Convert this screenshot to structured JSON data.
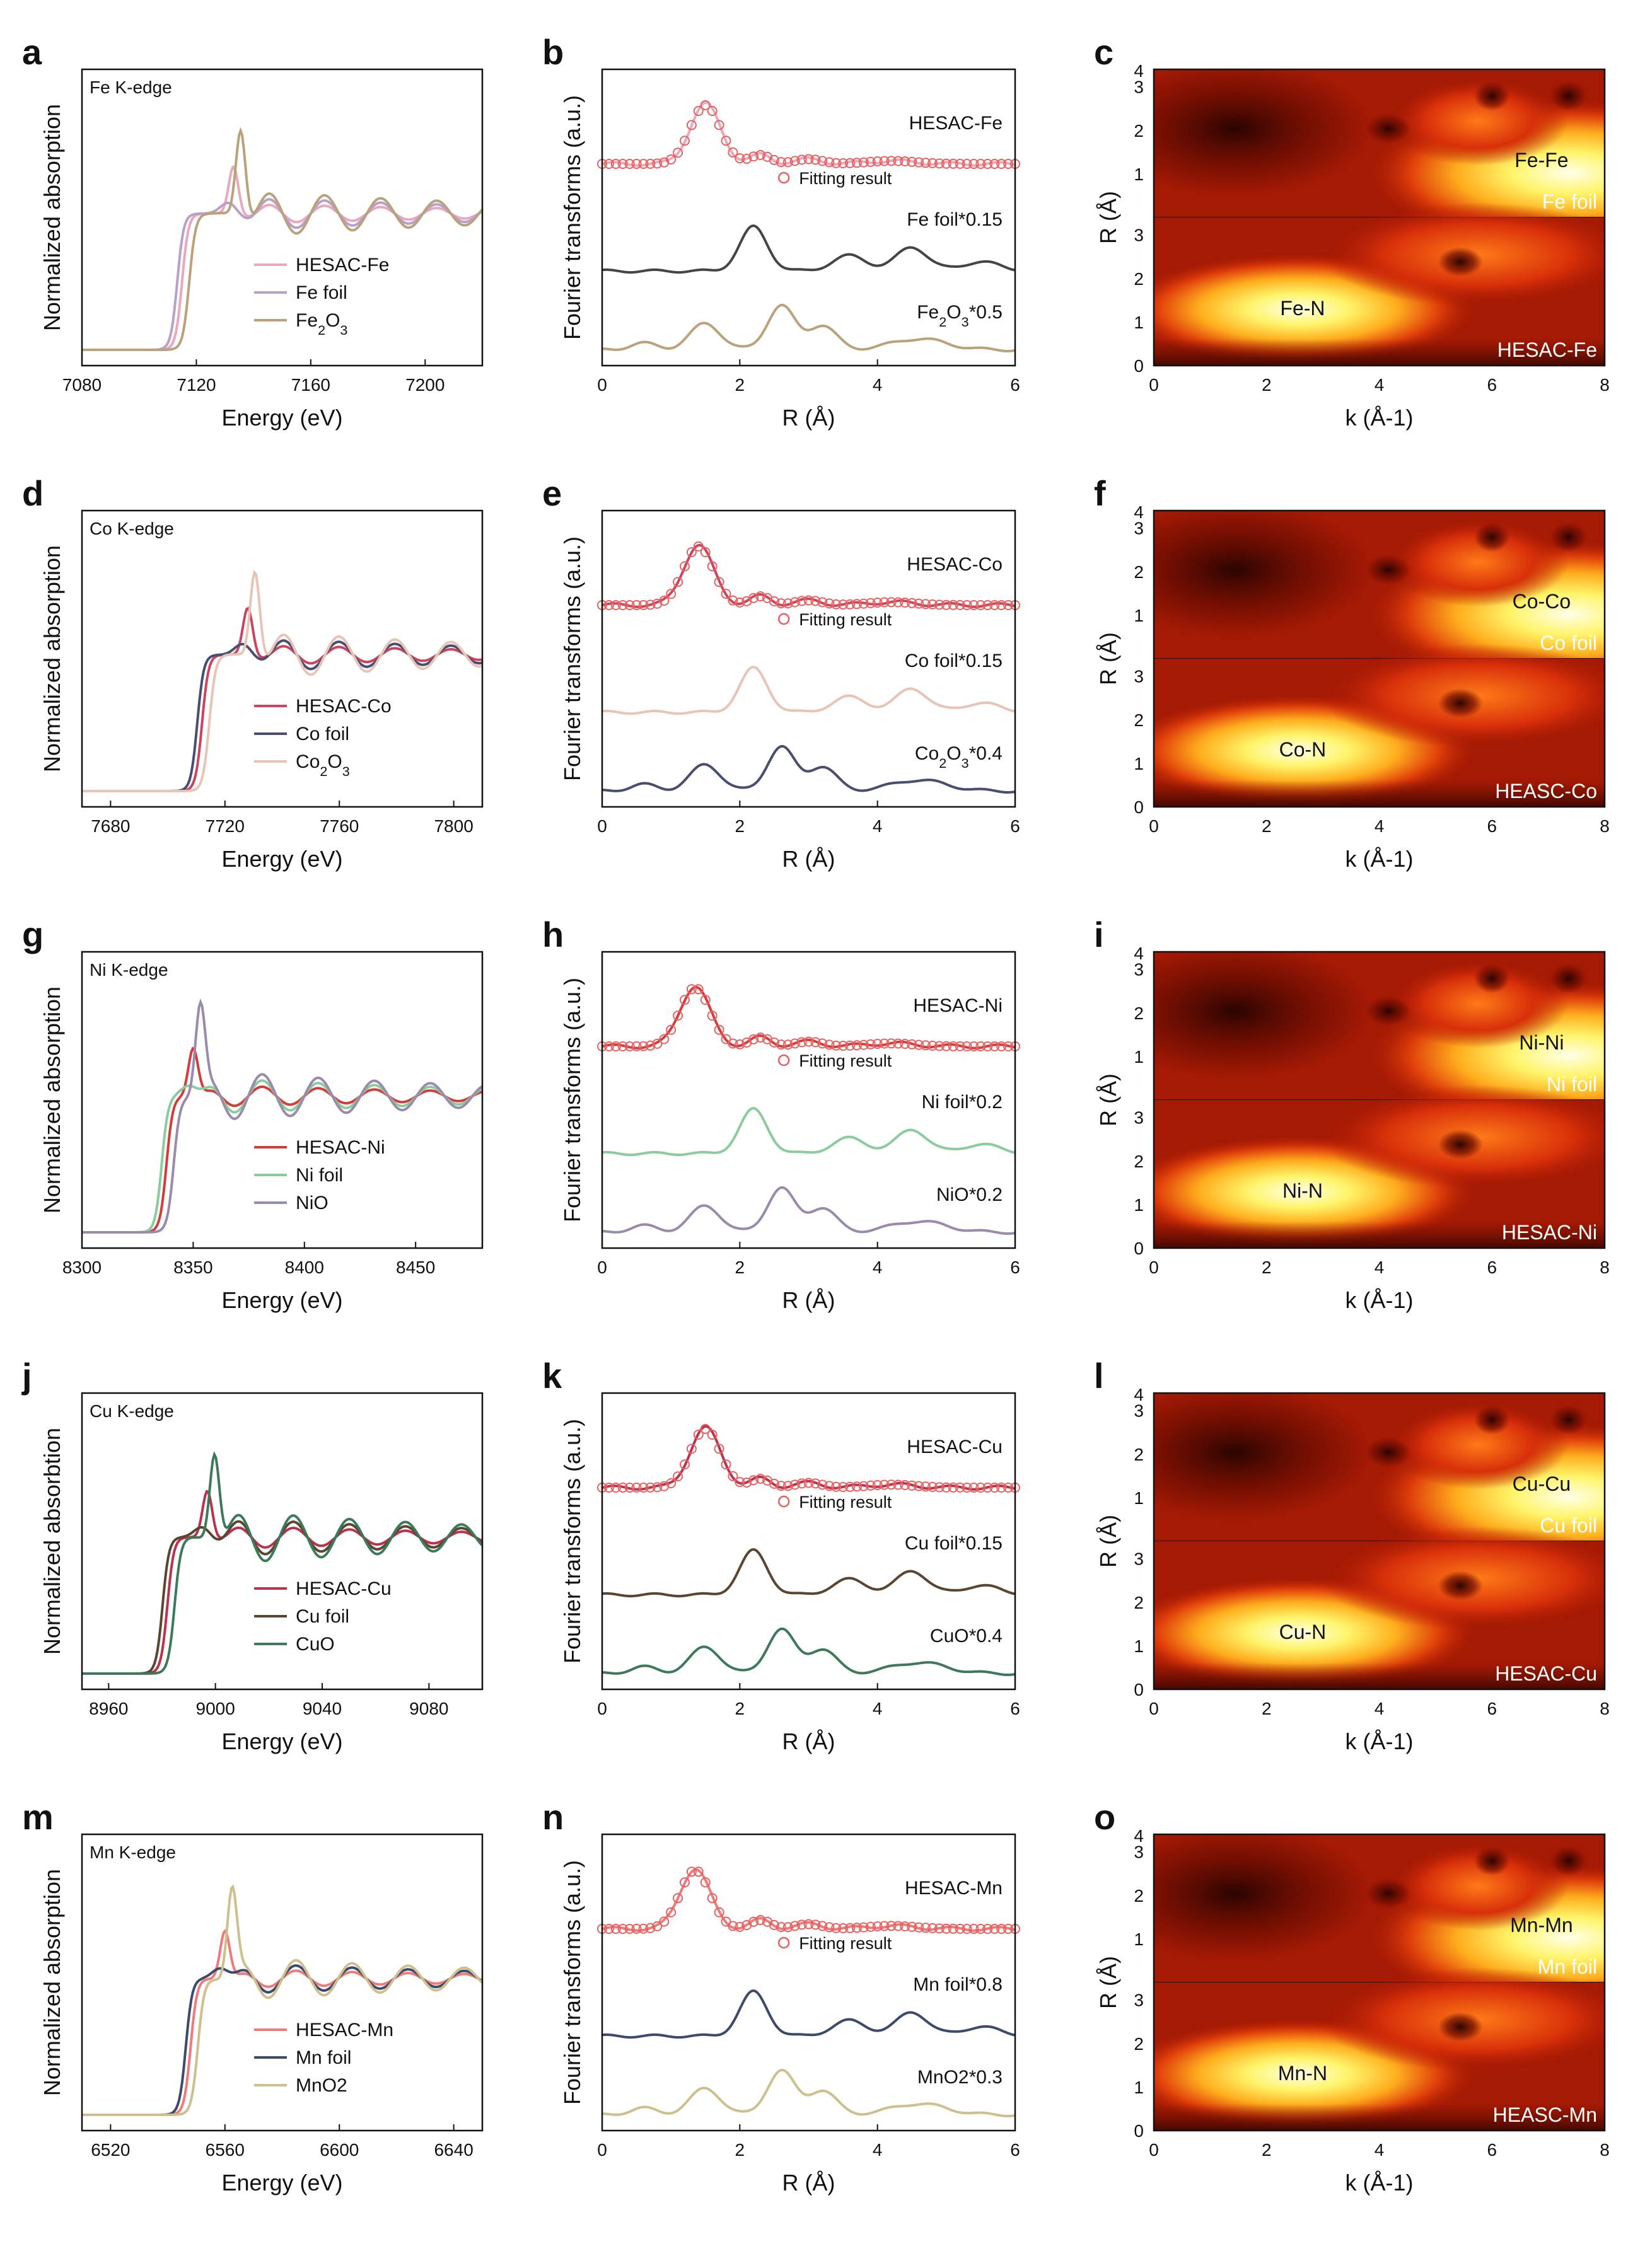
{
  "chart_data": [
    {
      "panel": "a",
      "type": "line",
      "edge_label": "Fe K-edge",
      "xlabel": "Energy (eV)",
      "ylabel": "Normalized absorption",
      "xlim": [
        7080,
        7220
      ],
      "xticks": [
        "7080",
        "7120",
        "7160",
        "7200"
      ],
      "e0": 7115,
      "peak": 7133,
      "post": 7160,
      "series": [
        {
          "name": "HESAC-Fe",
          "color": "#e8a9be"
        },
        {
          "name": "Fe foil",
          "color": "#b9a0c9"
        },
        {
          "name": "Fe2O3",
          "color": "#b9a27c"
        }
      ]
    },
    {
      "panel": "b",
      "type": "line",
      "xlabel": "R (Å)",
      "ylabel": "Fourier transforms (a.u.)",
      "xlim": [
        0,
        6
      ],
      "xticks": [
        "0",
        "2",
        "4",
        "6"
      ],
      "sample_label": "HESAC-Fe",
      "fit_label": "Fitting result",
      "ref1_label": "Fe foil*0.15",
      "ref2_label": "Fe2O3*0.5",
      "colors": {
        "sample": "#e8a9be",
        "ref1": "#454545",
        "ref2": "#b9a27c"
      },
      "sample_peak": 1.5
    },
    {
      "panel": "c",
      "type": "heatmap",
      "xlabel": "k (Å-1)",
      "ylabel": "R (Å)",
      "xlim": [
        0,
        8
      ],
      "ylim": [
        0,
        4
      ],
      "xticks": [
        "0",
        "2",
        "4",
        "6",
        "8"
      ],
      "yticks": [
        "0",
        "1",
        "2",
        "3",
        "4"
      ],
      "top_label": "Fe foil",
      "top_path": "Fe-Fe",
      "bottom_label": "HESAC-Fe",
      "bottom_path": "Fe-N"
    },
    {
      "panel": "d",
      "type": "line",
      "edge_label": "Co K-edge",
      "xlabel": "Energy (eV)",
      "ylabel": "Normalized absorption",
      "xlim": [
        7670,
        7810
      ],
      "xticks": [
        "7680",
        "7720",
        "7760",
        "7800"
      ],
      "e0": 7712,
      "peak": 7728,
      "post": 7755,
      "series": [
        {
          "name": "HESAC-Co",
          "color": "#c8465e"
        },
        {
          "name": "Co foil",
          "color": "#4a4d72"
        },
        {
          "name": "Co2O3",
          "color": "#e8c4b6"
        }
      ]
    },
    {
      "panel": "e",
      "type": "line",
      "xlabel": "R (Å)",
      "ylabel": "Fourier transforms (a.u.)",
      "xlim": [
        0,
        6
      ],
      "xticks": [
        "0",
        "2",
        "4",
        "6"
      ],
      "sample_label": "HESAC-Co",
      "fit_label": "Fitting result",
      "ref1_label": "Co foil*0.15",
      "ref2_label": "Co2O3*0.4",
      "colors": {
        "sample": "#c8465e",
        "ref1": "#e8c4b6",
        "ref2": "#4a4d72"
      },
      "sample_peak": 1.4
    },
    {
      "panel": "f",
      "type": "heatmap",
      "xlabel": "k  (Å-1)",
      "ylabel": "R (Å)",
      "xlim": [
        0,
        8
      ],
      "ylim": [
        0,
        4
      ],
      "xticks": [
        "0",
        "2",
        "4",
        "6",
        "8"
      ],
      "yticks": [
        "0",
        "1",
        "2",
        "3",
        "4"
      ],
      "top_label": "Co foil",
      "top_path": "Co-Co",
      "bottom_label": "HEASC-Co",
      "bottom_path": "Co-N"
    },
    {
      "panel": "g",
      "type": "line",
      "edge_label": "Ni K-edge",
      "xlabel": "Energy (eV)",
      "ylabel": "Normalized absorption",
      "xlim": [
        8300,
        8480
      ],
      "xticks": [
        "8300",
        "8350",
        "8400",
        "8450"
      ],
      "e0": 8338,
      "peak": 8350,
      "post": 8400,
      "series": [
        {
          "name": "HESAC-Ni",
          "color": "#d43c3c"
        },
        {
          "name": "Ni foil",
          "color": "#8ccc9c"
        },
        {
          "name": "NiO",
          "color": "#9a8aac"
        }
      ]
    },
    {
      "panel": "h",
      "type": "line",
      "xlabel": "R (Å)",
      "ylabel": "Fourier transforms (a.u.)",
      "xlim": [
        0,
        6
      ],
      "xticks": [
        "0",
        "2",
        "4",
        "6"
      ],
      "sample_label": "HESAC-Ni",
      "fit_label": "Fitting result",
      "ref1_label": "Ni foil*0.2",
      "ref2_label": "NiO*0.2",
      "colors": {
        "sample": "#d43c3c",
        "ref1": "#8ccc9c",
        "ref2": "#9a8aac"
      },
      "sample_peak": 1.35
    },
    {
      "panel": "i",
      "type": "heatmap",
      "xlabel": "k (Å-1)",
      "ylabel": "R (Å)",
      "xlim": [
        0,
        8
      ],
      "ylim": [
        0,
        4
      ],
      "xticks": [
        "0",
        "2",
        "4",
        "6",
        "8"
      ],
      "yticks": [
        "0",
        "1",
        "2",
        "3",
        "4"
      ],
      "top_label": "Ni foil",
      "top_path": "Ni-Ni",
      "bottom_label": "HESAC-Ni",
      "bottom_path": "Ni-N"
    },
    {
      "panel": "j",
      "type": "line",
      "edge_label": "Cu K-edge",
      "xlabel": "Energy (eV)",
      "ylabel": "Normalized absorbtion",
      "xlim": [
        8950,
        9100
      ],
      "xticks": [
        "8960",
        "9000",
        "9040",
        "9080"
      ],
      "e0": 8982,
      "peak": 8997,
      "post": 9045,
      "series": [
        {
          "name": "HESAC-Cu",
          "color": "#b8344e"
        },
        {
          "name": "Cu foil",
          "color": "#5a4530"
        },
        {
          "name": "CuO",
          "color": "#3c7a5a"
        }
      ]
    },
    {
      "panel": "k",
      "type": "line",
      "xlabel": "R (Å)",
      "ylabel": "Fourier transforms (a.u.)",
      "xlim": [
        0,
        6
      ],
      "xticks": [
        "0",
        "2",
        "4",
        "6"
      ],
      "sample_label": "HESAC-Cu",
      "fit_label": "Fitting result",
      "ref1_label": "Cu foil*0.15",
      "ref2_label": "CuO*0.4",
      "colors": {
        "sample": "#b8344e",
        "ref1": "#5a4530",
        "ref2": "#3c7a5a"
      },
      "sample_peak": 1.5
    },
    {
      "panel": "l",
      "type": "heatmap",
      "xlabel": "k (Å-1)",
      "ylabel": "R (Å)",
      "xlim": [
        0,
        8
      ],
      "ylim": [
        0,
        4
      ],
      "xticks": [
        "0",
        "2",
        "4",
        "6",
        "8"
      ],
      "yticks": [
        "0",
        "1",
        "2",
        "3",
        "4"
      ],
      "top_label": "Cu foil",
      "top_path": "Cu-Cu",
      "bottom_label": "HESAC-Cu",
      "bottom_path": "Cu-N"
    },
    {
      "panel": "m",
      "type": "line",
      "edge_label": "Mn K-edge",
      "xlabel": "Energy (eV)",
      "ylabel": "Normalized absorption",
      "xlim": [
        6510,
        6650
      ],
      "xticks": [
        "6520",
        "6560",
        "6600",
        "6640"
      ],
      "e0": 6548,
      "peak": 6560,
      "post": 6580,
      "series": [
        {
          "name": "HESAC-Mn",
          "color": "#ee7a7a"
        },
        {
          "name": "Mn foil",
          "color": "#3c4a6c"
        },
        {
          "name": "MnO2",
          "color": "#cdc08e"
        }
      ]
    },
    {
      "panel": "n",
      "type": "line",
      "xlabel": "R (Å)",
      "ylabel": "Fourier transforms (a.u.)",
      "xlim": [
        0,
        6
      ],
      "xticks": [
        "0",
        "2",
        "4",
        "6"
      ],
      "sample_label": "HESAC-Mn",
      "fit_label": "Fitting result",
      "ref1_label": "Mn foil*0.8",
      "ref2_label": "MnO2*0.3",
      "colors": {
        "sample": "#ee7a7a",
        "ref1": "#3c4a6c",
        "ref2": "#cdc08e"
      },
      "sample_peak": 1.35
    },
    {
      "panel": "o",
      "type": "heatmap",
      "xlabel": "k (Å-1)",
      "ylabel": "R (Å)",
      "xlim": [
        0,
        8
      ],
      "ylim": [
        0,
        4
      ],
      "xticks": [
        "0",
        "2",
        "4",
        "6",
        "8"
      ],
      "yticks": [
        "0",
        "1",
        "2",
        "3",
        "4"
      ],
      "top_label": "Mn foil",
      "top_path": "Mn-Mn",
      "bottom_label": "HEASC-Mn",
      "bottom_path": "Mn-N"
    }
  ]
}
